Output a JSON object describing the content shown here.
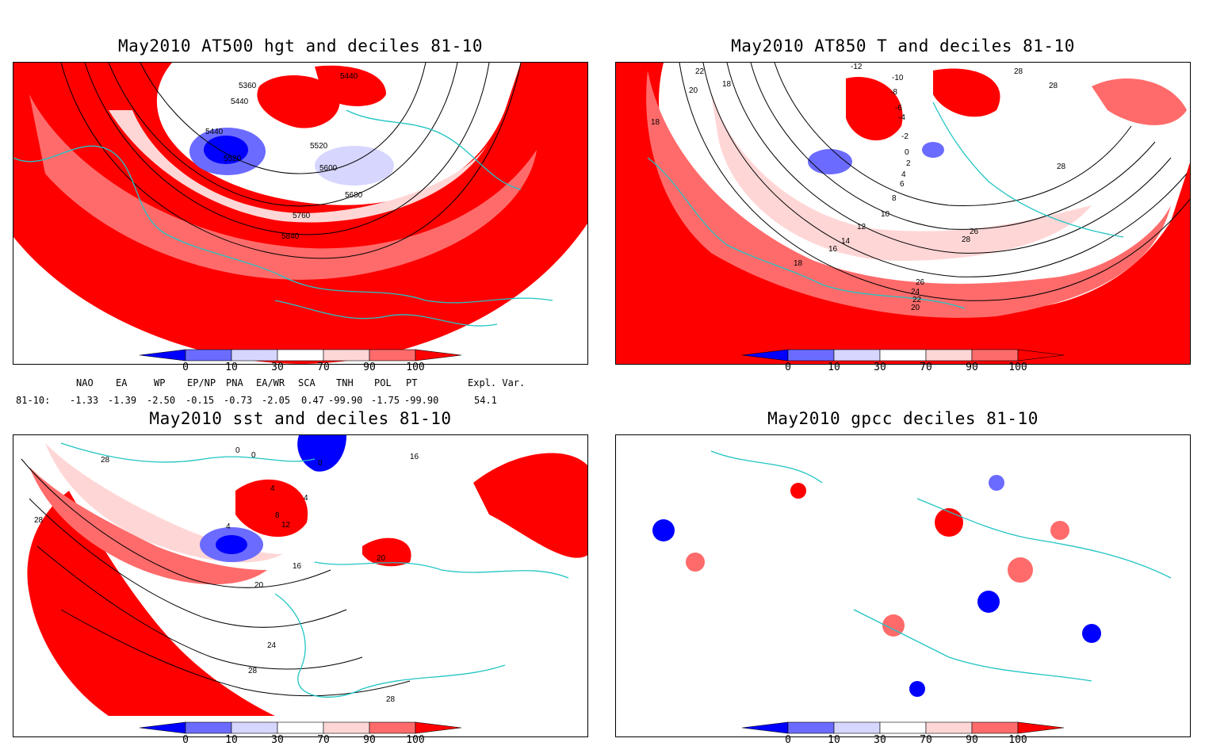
{
  "panels": [
    {
      "title": "May2010 AT500 hgt and deciles 81-10",
      "contour_labels": [
        "5360",
        "5440",
        "5440",
        "5440",
        "5520",
        "5520",
        "5600",
        "5680",
        "5760",
        "5840"
      ]
    },
    {
      "title": "May2010 AT850 T and deciles 81-10",
      "contour_labels": [
        "-12",
        "-10",
        "-8",
        "-6",
        "-4",
        "-2",
        "0",
        "2",
        "4",
        "6",
        "8",
        "10",
        "12",
        "14",
        "16",
        "18",
        "18",
        "18",
        "20",
        "20",
        "22",
        "22",
        "24",
        "26",
        "26",
        "28",
        "28",
        "28",
        "28"
      ]
    },
    {
      "title": "May2010 sst and deciles 81-10",
      "contour_labels": [
        "0",
        "0",
        "0",
        "4",
        "4",
        "4",
        "8",
        "12",
        "16",
        "16",
        "20",
        "20",
        "24",
        "28",
        "28",
        "28",
        "28"
      ]
    },
    {
      "title": "May2010 gpcc deciles 81-10",
      "contour_labels": []
    }
  ],
  "colorbar": {
    "ticks": [
      "0",
      "10",
      "30",
      "70",
      "90",
      "100"
    ],
    "colors": [
      "#0000ff",
      "#6b6bff",
      "#d6d6ff",
      "#ffffff",
      "#ffd6d6",
      "#ff6b6b",
      "#ff0000"
    ]
  },
  "indices": {
    "row_label": "81-10:",
    "names": [
      "NAO",
      "EA",
      "WP",
      "EP/NP",
      "PNA",
      "EA/WR",
      "SCA",
      "TNH",
      "POL",
      "PT",
      "Expl. Var."
    ],
    "values": [
      "-1.33",
      "-1.39",
      "-2.50",
      "-0.15",
      "-0.73",
      "-2.05",
      "0.47",
      "-99.90",
      "-1.75",
      "-99.90",
      "54.1"
    ]
  },
  "map_colors": {
    "coast": "#22c4c4",
    "strong_pos": "#ff0000",
    "mid_pos": "#ff6b6b",
    "weak_pos": "#ffd6d6",
    "weak_neg": "#d6d6ff",
    "mid_neg": "#6b6bff",
    "strong_neg": "#0000ff"
  }
}
